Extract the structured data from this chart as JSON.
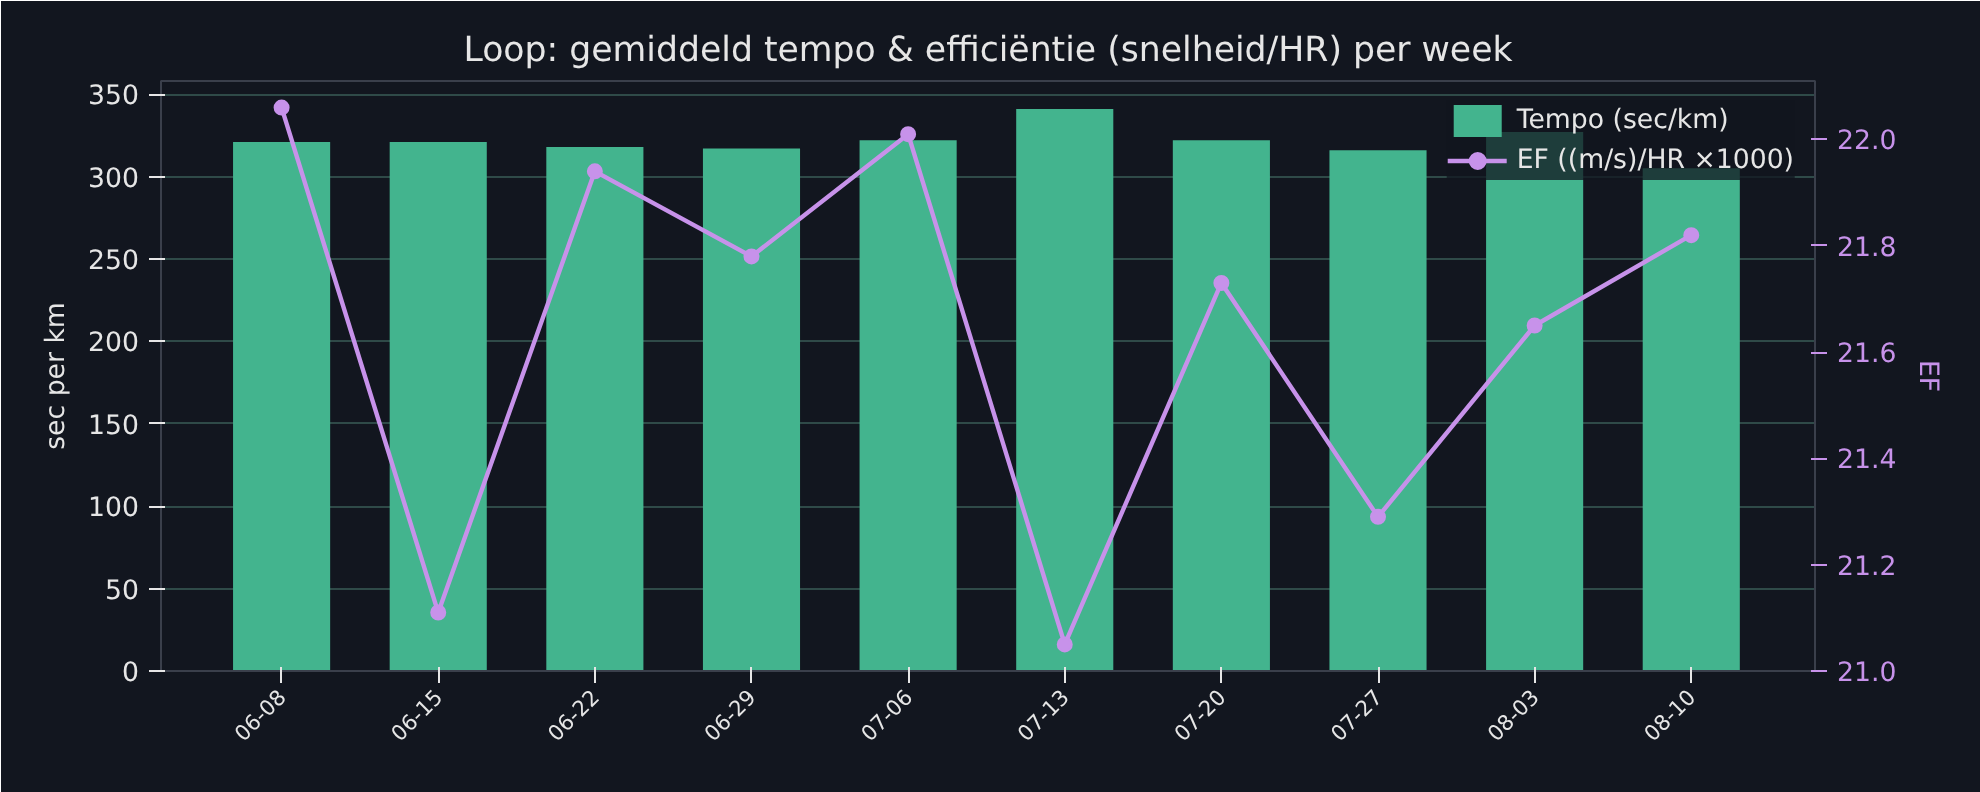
{
  "chart_data": {
    "type": "bar",
    "title": "Loop: gemiddeld tempo & efficiëntie (snelheid/HR) per week",
    "ylabel": "sec per km",
    "y2label": "EF",
    "categories": [
      "06-08",
      "06-15",
      "06-22",
      "06-29",
      "07-06",
      "07-13",
      "07-20",
      "07-27",
      "08-03",
      "08-10"
    ],
    "series": [
      {
        "name": "Tempo (sec/km)",
        "color": "#43b48e",
        "values": [
          321,
          321,
          318,
          317,
          322,
          341,
          322,
          316,
          327,
          305
        ]
      },
      {
        "name": "EF ((m/s)/HR ×1000)",
        "type": "line",
        "axis": "y2",
        "color": "#c792ea",
        "values": [
          22.06,
          21.11,
          21.94,
          21.78,
          22.01,
          21.05,
          21.73,
          21.29,
          21.65,
          21.82
        ]
      }
    ],
    "ylim": [
      0,
      358
    ],
    "yticks": [
      0,
      50,
      100,
      150,
      200,
      250,
      300,
      350
    ],
    "y2lim": [
      21.0,
      22.11
    ],
    "y2ticks": [
      {
        "value": 21.0,
        "label": "21.0"
      },
      {
        "value": 21.2,
        "label": "21.2"
      },
      {
        "value": 21.4,
        "label": "21.4"
      },
      {
        "value": 21.6,
        "label": "21.6"
      },
      {
        "value": 21.8,
        "label": "21.8"
      },
      {
        "value": 22.0,
        "label": "22.0"
      }
    ],
    "grid": "y",
    "legend": "top right",
    "marker": "circle",
    "line_style": "solid"
  }
}
